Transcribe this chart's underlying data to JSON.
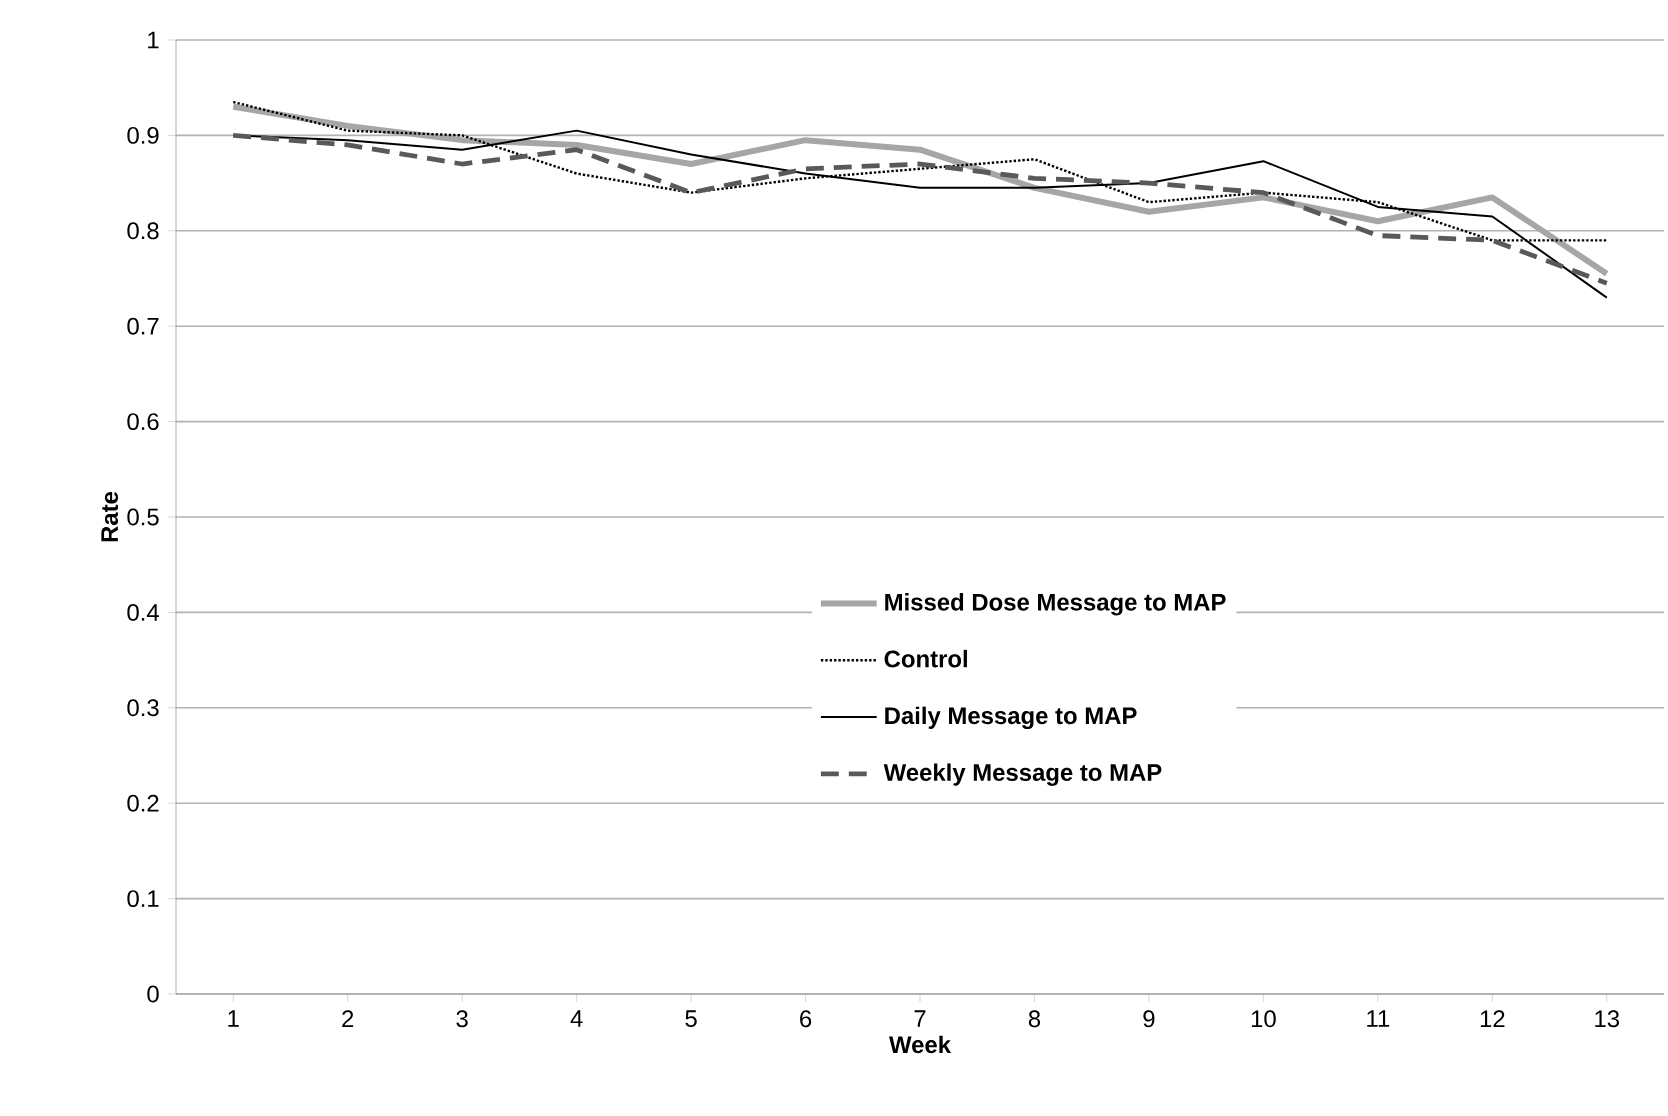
{
  "chart_data": {
    "type": "line",
    "xlabel": "Week",
    "ylabel": "Rate",
    "categories": [
      "1",
      "2",
      "3",
      "4",
      "5",
      "6",
      "7",
      "8",
      "9",
      "10",
      "11",
      "12",
      "13"
    ],
    "series": [
      {
        "name": "Missed Dose Message to MAP",
        "color": "#a6a6a6",
        "line_style": "solid",
        "values": [
          0.93,
          0.91,
          0.895,
          0.89,
          0.87,
          0.895,
          0.885,
          0.845,
          0.82,
          0.835,
          0.81,
          0.835,
          0.755
        ]
      },
      {
        "name": "Control",
        "color": "#000000",
        "line_style": "dotted",
        "values": [
          0.935,
          0.905,
          0.9,
          0.86,
          0.84,
          0.855,
          0.865,
          0.875,
          0.83,
          0.84,
          0.83,
          0.79,
          0.79
        ]
      },
      {
        "name": "Daily Message to MAP",
        "color": "#000000",
        "line_style": "solid",
        "values": [
          0.9,
          0.895,
          0.885,
          0.905,
          0.88,
          0.86,
          0.845,
          0.845,
          0.85,
          0.873,
          0.825,
          0.815,
          0.73
        ]
      },
      {
        "name": "Weekly Message to MAP",
        "color": "#595959",
        "line_style": "dashed",
        "values": [
          0.9,
          0.89,
          0.87,
          0.885,
          0.84,
          0.865,
          0.87,
          0.855,
          0.85,
          0.84,
          0.795,
          0.79,
          0.745
        ]
      }
    ],
    "ylim": [
      0,
      1
    ],
    "yticks": [
      0,
      0.1,
      0.2,
      0.3,
      0.4,
      0.5,
      0.6,
      0.7,
      0.8,
      0.9,
      1
    ],
    "grid": "y",
    "legend": "center",
    "marker": "none"
  }
}
